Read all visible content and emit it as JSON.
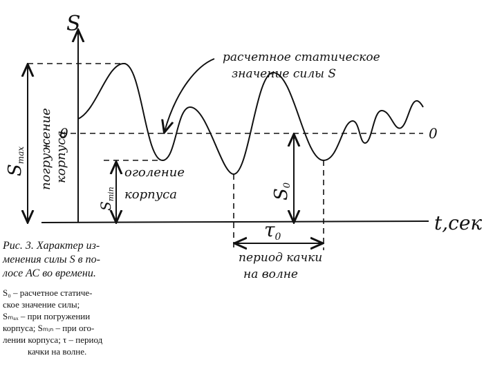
{
  "figure": {
    "axis_s": "S",
    "axis_t": "t,сек",
    "zero_left": "0",
    "zero_right": "0",
    "annotation_static": [
      "расчетное статическое",
      "значение силы S"
    ],
    "label_submersion": [
      "погружение",
      "корпуса"
    ],
    "label_emersion": [
      "оголение",
      "корпуса"
    ],
    "s_max": {
      "symbol": "S",
      "sub": "max"
    },
    "s_min": {
      "symbol": "S",
      "sub": "min"
    },
    "s_0": {
      "symbol": "S",
      "sub": "0"
    },
    "tau_0": {
      "symbol": "τ",
      "sub": "0"
    },
    "label_period": [
      "период качки",
      "на волне"
    ],
    "caption_title": [
      "Рис. 3. Характер из-",
      "менения силы S в по-",
      "лосе АС во времени."
    ],
    "caption_text": [
      "S₀ – расчетное статиче-",
      "ское значение силы;",
      "Sₘₐₓ – при погружении",
      "корпуса; Sₘᵢₙ – при ого-",
      "лении корпуса; τ – период",
      "качки на волне."
    ]
  }
}
